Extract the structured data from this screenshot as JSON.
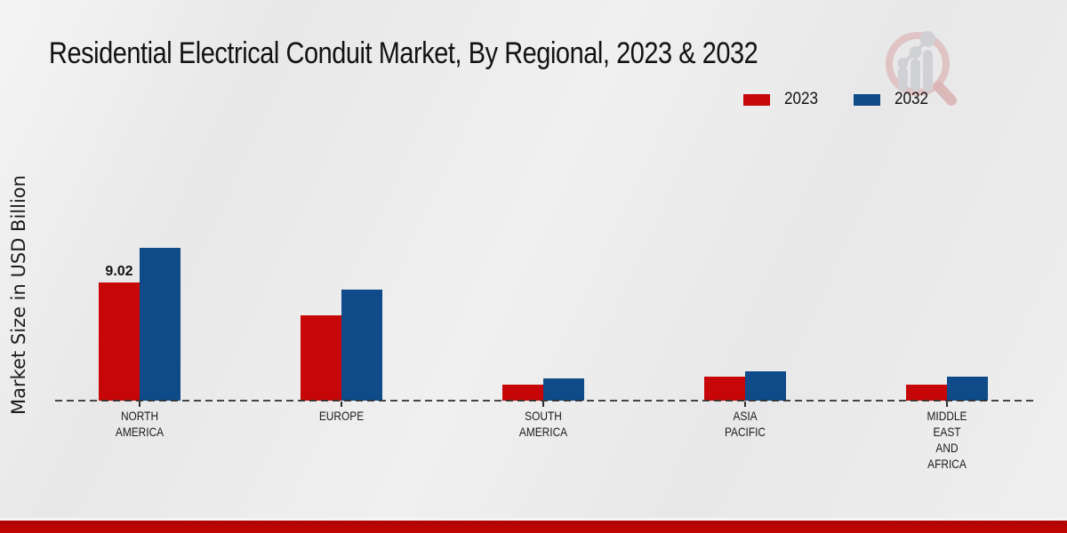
{
  "title": "Residential Electrical Conduit Market, By Regional, 2023 & 2032",
  "y_axis_label": "Market Size in USD Billion",
  "legend": {
    "position": "top-right",
    "items": [
      {
        "label": "2023",
        "color": "#c70707"
      },
      {
        "label": "2032",
        "color": "#0f4b88"
      }
    ]
  },
  "watermark": {
    "icon": "market-research-magnifier-chart-logo"
  },
  "colors": {
    "background": "#e8e8e9",
    "series_2023": "#c70707",
    "series_2032": "#0f4b88",
    "baseline": "#2e2e2e",
    "footer_accent": "#bb0303",
    "text": "#1c1c1c"
  },
  "chart_data": {
    "type": "bar",
    "title": "Residential Electrical Conduit Market, By Regional, 2023 & 2032",
    "xlabel": "",
    "ylabel": "Market Size in USD Billion",
    "categories": [
      "NORTH AMERICA",
      "EUROPE",
      "SOUTH AMERICA",
      "ASIA PACIFIC",
      "MIDDLE EAST AND AFRICA"
    ],
    "category_label_lines": [
      [
        "NORTH",
        "AMERICA"
      ],
      [
        "EUROPE"
      ],
      [
        "SOUTH",
        "AMERICA"
      ],
      [
        "ASIA",
        "PACIFIC"
      ],
      [
        "MIDDLE",
        "EAST",
        "AND",
        "AFRICA"
      ]
    ],
    "series": [
      {
        "name": "2023",
        "color": "#c70707",
        "values": [
          9.02,
          6.5,
          1.2,
          1.8,
          1.2
        ]
      },
      {
        "name": "2032",
        "color": "#0f4b88",
        "values": [
          11.66,
          8.5,
          1.7,
          2.25,
          1.8
        ]
      }
    ],
    "data_labels": [
      {
        "series": "2023",
        "category": "NORTH AMERICA",
        "value": "9.02"
      }
    ],
    "ylim": [
      0,
      12.5
    ],
    "grid": false,
    "baseline_style": "dashed",
    "legend_position": "top-right"
  }
}
